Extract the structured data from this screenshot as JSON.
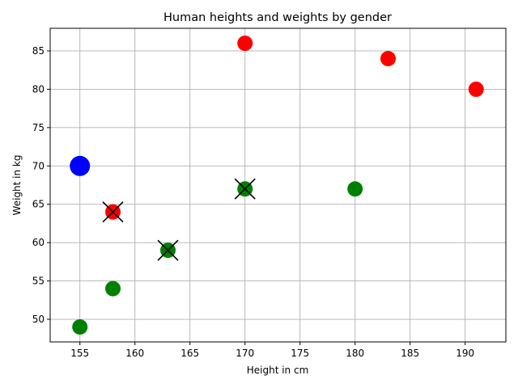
{
  "chart_data": {
    "type": "scatter",
    "title": "Human heights and weights by gender",
    "xlabel": "Height in cm",
    "ylabel": "Weight in kg",
    "xlim": [
      152.3,
      193.7
    ],
    "ylim": [
      47.05,
      87.95
    ],
    "xticks": [
      155,
      160,
      165,
      170,
      175,
      180,
      185,
      190
    ],
    "yticks": [
      50,
      55,
      60,
      65,
      70,
      75,
      80,
      85
    ],
    "grid": true,
    "colors": {
      "red": "#ff0000",
      "green": "#008000",
      "blue": "#0000ff"
    },
    "points": [
      {
        "x": 170,
        "y": 86,
        "color": "red",
        "size": "normal",
        "marker_x": false
      },
      {
        "x": 183,
        "y": 84,
        "color": "red",
        "size": "normal",
        "marker_x": false
      },
      {
        "x": 191,
        "y": 80,
        "color": "red",
        "size": "normal",
        "marker_x": false
      },
      {
        "x": 155,
        "y": 70,
        "color": "blue",
        "size": "large",
        "marker_x": false
      },
      {
        "x": 170,
        "y": 67,
        "color": "green",
        "size": "normal",
        "marker_x": true
      },
      {
        "x": 180,
        "y": 67,
        "color": "green",
        "size": "normal",
        "marker_x": false
      },
      {
        "x": 158,
        "y": 64,
        "color": "red",
        "size": "normal",
        "marker_x": true
      },
      {
        "x": 163,
        "y": 59,
        "color": "green",
        "size": "normal",
        "marker_x": true
      },
      {
        "x": 158,
        "y": 54,
        "color": "green",
        "size": "normal",
        "marker_x": false
      },
      {
        "x": 155,
        "y": 49,
        "color": "green",
        "size": "normal",
        "marker_x": false
      }
    ]
  }
}
